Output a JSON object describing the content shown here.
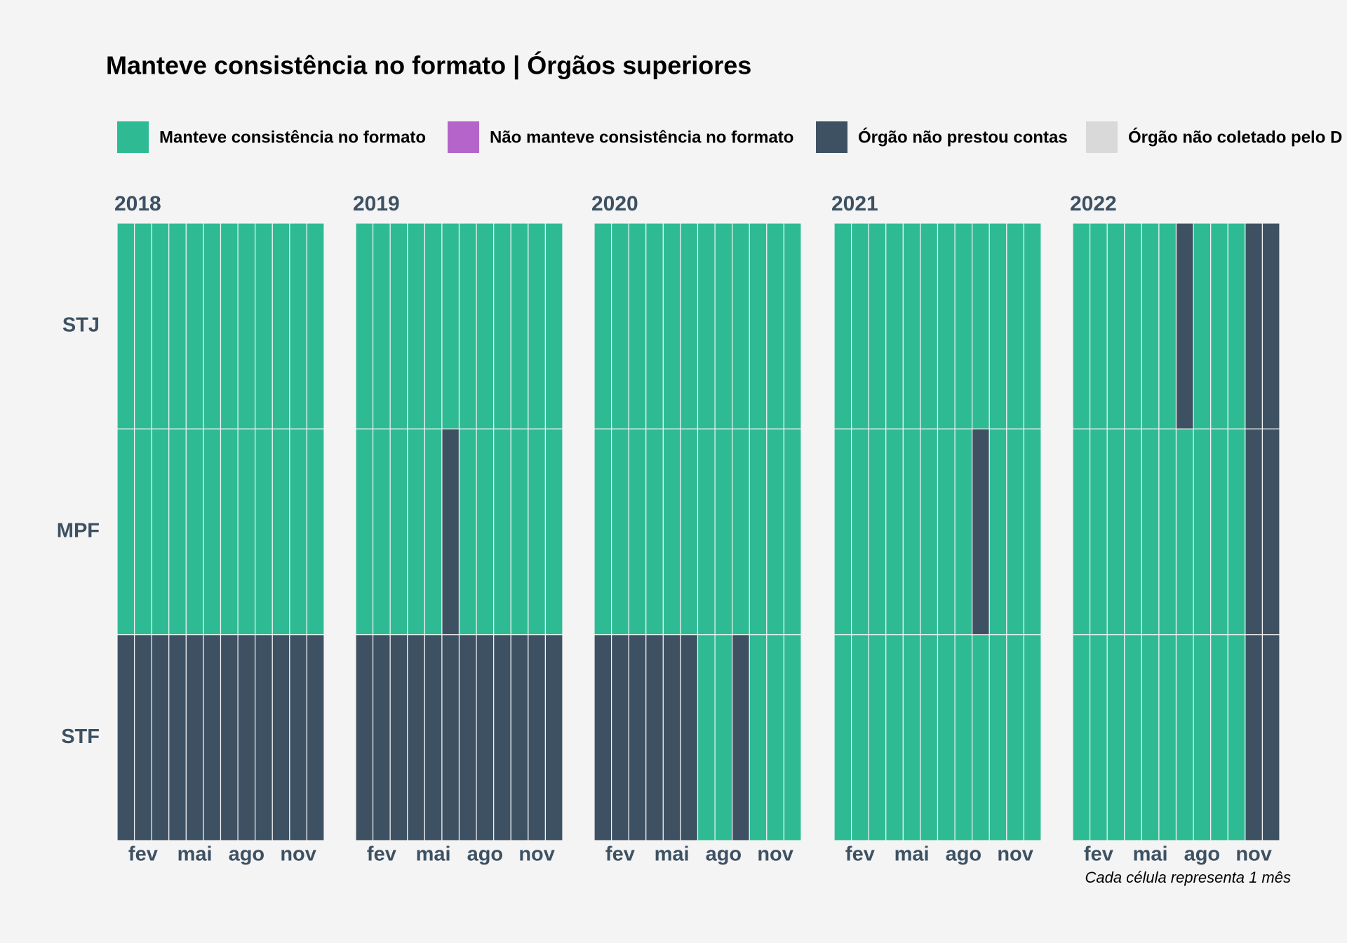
{
  "chart_data": {
    "type": "heatmap",
    "title": "Manteve consistência no formato | Órgãos superiores",
    "caption": "Cada célula representa 1 mês",
    "series": [
      {
        "name": "Manteve consistência no formato",
        "color": "#2ebb93"
      },
      {
        "name": "Não manteve consistência no formato",
        "color": "#b565c9"
      },
      {
        "name": "Órgão não prestou contas",
        "color": "#3d5163"
      },
      {
        "name": "Órgão não coletado pelo D",
        "color": "#d9d9d9"
      }
    ],
    "categories": [
      null,
      "fev",
      null,
      null,
      "mai",
      null,
      null,
      "ago",
      null,
      null,
      "nov",
      null
    ],
    "rows": [
      "STJ",
      "MPF",
      "STF"
    ],
    "facets": [
      {
        "label": "2018",
        "values": [
          [
            0,
            0,
            0,
            0,
            0,
            0,
            0,
            0,
            0,
            0,
            0,
            0
          ],
          [
            0,
            0,
            0,
            0,
            0,
            0,
            0,
            0,
            0,
            0,
            0,
            0
          ],
          [
            2,
            2,
            2,
            2,
            2,
            2,
            2,
            2,
            2,
            2,
            2,
            2
          ]
        ]
      },
      {
        "label": "2019",
        "values": [
          [
            0,
            0,
            0,
            0,
            0,
            0,
            0,
            0,
            0,
            0,
            0,
            0
          ],
          [
            0,
            0,
            0,
            0,
            0,
            2,
            0,
            0,
            0,
            0,
            0,
            0
          ],
          [
            2,
            2,
            2,
            2,
            2,
            2,
            2,
            2,
            2,
            2,
            2,
            2
          ]
        ]
      },
      {
        "label": "2020",
        "values": [
          [
            0,
            0,
            0,
            0,
            0,
            0,
            0,
            0,
            0,
            0,
            0,
            0
          ],
          [
            0,
            0,
            0,
            0,
            0,
            0,
            0,
            0,
            0,
            0,
            0,
            0
          ],
          [
            2,
            2,
            2,
            2,
            2,
            2,
            0,
            0,
            2,
            0,
            0,
            0
          ]
        ]
      },
      {
        "label": "2021",
        "values": [
          [
            0,
            0,
            0,
            0,
            0,
            0,
            0,
            0,
            0,
            0,
            0,
            0
          ],
          [
            0,
            0,
            0,
            0,
            0,
            0,
            0,
            0,
            2,
            0,
            0,
            0
          ],
          [
            0,
            0,
            0,
            0,
            0,
            0,
            0,
            0,
            0,
            0,
            0,
            0
          ]
        ]
      },
      {
        "label": "2022",
        "values": [
          [
            0,
            0,
            0,
            0,
            0,
            0,
            2,
            0,
            0,
            0,
            2,
            2
          ],
          [
            0,
            0,
            0,
            0,
            0,
            0,
            0,
            0,
            0,
            0,
            2,
            2
          ],
          [
            0,
            0,
            0,
            0,
            0,
            0,
            0,
            0,
            0,
            0,
            2,
            2
          ]
        ]
      }
    ]
  }
}
